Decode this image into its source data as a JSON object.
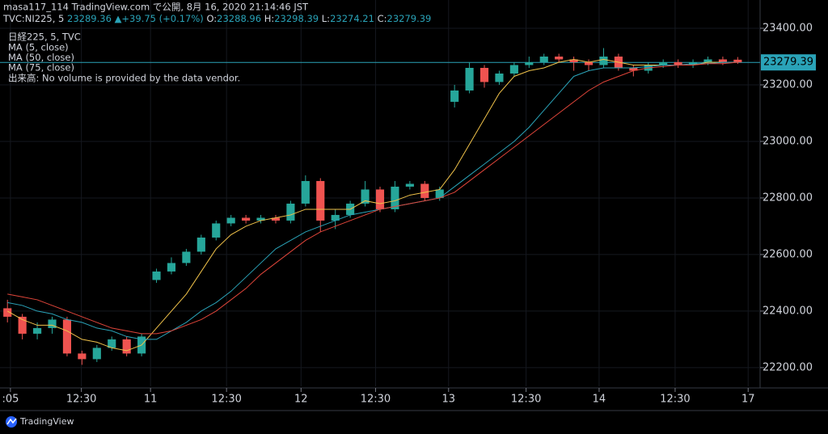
{
  "header": {
    "title": "masa117_114 TradingView.com で公開, 8月 16, 2020 21:14:46 JST",
    "symbol": "TVC:NI225, 5",
    "last": "23289.36",
    "arrow": "▲",
    "change": "+39.75 (+0.17%)",
    "ohlc": [
      {
        "label": "O:",
        "value": "23288.96"
      },
      {
        "label": "H:",
        "value": "23298.39"
      },
      {
        "label": "L:",
        "value": "23274.21"
      },
      {
        "label": "C:",
        "value": "23279.39"
      }
    ]
  },
  "footer": "TradingView",
  "chart_data": {
    "type": "candlestick",
    "legend_title": "日経225, 5, TVC",
    "volume_note": "出来高: No volume is provided by the data vendor.",
    "up_color": "#26a69a",
    "down_color": "#ef5350",
    "x": [
      0,
      1,
      2,
      3,
      4,
      5,
      6,
      7,
      8,
      9,
      10,
      11,
      12,
      13,
      14,
      15,
      16,
      17,
      18,
      19,
      20,
      21,
      22,
      23,
      24,
      25,
      26,
      27,
      28,
      29,
      30,
      31,
      32,
      33,
      34,
      35,
      36,
      37,
      38,
      39,
      40,
      41,
      42,
      43,
      44,
      45,
      46,
      47,
      48,
      49
    ],
    "open": [
      22410,
      22380,
      22320,
      22340,
      22370,
      22250,
      22230,
      22270,
      22300,
      22250,
      22510,
      22540,
      22570,
      22610,
      22660,
      22710,
      22730,
      22720,
      22730,
      22720,
      22780,
      22860,
      22720,
      22740,
      22780,
      22830,
      22760,
      22840,
      22850,
      22800,
      23140,
      23180,
      23260,
      23210,
      23240,
      23270,
      23280,
      23300,
      23290,
      23280,
      23270,
      23300,
      23260,
      23250,
      23270,
      23280,
      23270,
      23280,
      23290,
      23288.96
    ],
    "high": [
      22440,
      22390,
      22360,
      22380,
      22380,
      22260,
      22280,
      22310,
      22310,
      22320,
      22550,
      22590,
      22620,
      22670,
      22720,
      22740,
      22740,
      22740,
      22740,
      22790,
      22880,
      22870,
      22760,
      22790,
      22860,
      22840,
      22860,
      22860,
      22860,
      22840,
      23200,
      23280,
      23270,
      23250,
      23280,
      23300,
      23310,
      23310,
      23300,
      23290,
      23330,
      23310,
      23270,
      23280,
      23290,
      23290,
      23290,
      23300,
      23300,
      23298.39
    ],
    "low": [
      22360,
      22300,
      22300,
      22320,
      22240,
      22210,
      22220,
      22260,
      22240,
      22240,
      22500,
      22530,
      22560,
      22600,
      22650,
      22700,
      22710,
      22710,
      22710,
      22710,
      22770,
      22680,
      22690,
      22730,
      22770,
      22750,
      22750,
      22830,
      22790,
      22790,
      23120,
      23170,
      23190,
      23200,
      23230,
      23260,
      23270,
      23280,
      23250,
      23250,
      23260,
      23250,
      23230,
      23240,
      23260,
      23260,
      23260,
      23270,
      23270,
      23274.21
    ],
    "close": [
      22380,
      22320,
      22340,
      22370,
      22250,
      22230,
      22270,
      22300,
      22250,
      22310,
      22540,
      22570,
      22610,
      22660,
      22710,
      22730,
      22720,
      22730,
      22720,
      22780,
      22860,
      22720,
      22740,
      22780,
      22830,
      22760,
      22840,
      22850,
      22800,
      22830,
      23180,
      23260,
      23210,
      23240,
      23270,
      23280,
      23300,
      23290,
      23280,
      23270,
      23300,
      23260,
      23250,
      23270,
      23280,
      23270,
      23280,
      23290,
      23280,
      23279.39
    ],
    "series": [
      {
        "name": "MA (5, close)",
        "color": "#f0c24a",
        "values": [
          22400,
          22370,
          22350,
          22350,
          22330,
          22300,
          22290,
          22270,
          22260,
          22280,
          22340,
          22400,
          22460,
          22540,
          22620,
          22670,
          22700,
          22720,
          22730,
          22740,
          22760,
          22760,
          22760,
          22760,
          22790,
          22780,
          22790,
          22810,
          22820,
          22830,
          22900,
          22990,
          23080,
          23170,
          23230,
          23250,
          23260,
          23280,
          23290,
          23280,
          23290,
          23280,
          23270,
          23270,
          23270,
          23270,
          23270,
          23280,
          23280,
          23280
        ]
      },
      {
        "name": "MA (50, close)",
        "color": "#2aa3b8",
        "values": [
          22430,
          22420,
          22400,
          22390,
          22370,
          22360,
          22340,
          22330,
          22310,
          22300,
          22300,
          22330,
          22360,
          22400,
          22430,
          22470,
          22520,
          22570,
          22620,
          22650,
          22680,
          22700,
          22720,
          22740,
          22750,
          22760,
          22770,
          22780,
          22790,
          22800,
          22840,
          22880,
          22920,
          22960,
          23000,
          23050,
          23110,
          23170,
          23230,
          23250,
          23260,
          23260,
          23260,
          23265,
          23270,
          23270,
          23275,
          23275,
          23280,
          23280
        ]
      },
      {
        "name": "MA (75, close)",
        "color": "#e0453a",
        "values": [
          22460,
          22450,
          22440,
          22420,
          22400,
          22380,
          22360,
          22340,
          22330,
          22320,
          22320,
          22330,
          22350,
          22370,
          22400,
          22440,
          22480,
          22530,
          22570,
          22610,
          22650,
          22680,
          22700,
          22720,
          22740,
          22760,
          22770,
          22780,
          22790,
          22800,
          22820,
          22860,
          22900,
          22940,
          22980,
          23020,
          23060,
          23100,
          23140,
          23180,
          23210,
          23230,
          23250,
          23260,
          23265,
          23270,
          23270,
          23275,
          23275,
          23280
        ]
      }
    ],
    "xlim": [
      -0.5,
      50.5
    ],
    "xticks": [
      {
        "value": 0.2,
        "label": ":05"
      },
      {
        "value": 4.96,
        "label": "12:30"
      },
      {
        "value": 9.6,
        "label": "11"
      },
      {
        "value": 14.7,
        "label": "12:30"
      },
      {
        "value": 19.7,
        "label": "12"
      },
      {
        "value": 24.7,
        "label": "12:30"
      },
      {
        "value": 29.6,
        "label": "13"
      },
      {
        "value": 34.8,
        "label": "12:30"
      },
      {
        "value": 39.7,
        "label": "14"
      },
      {
        "value": 44.8,
        "label": "12:30"
      },
      {
        "value": 49.7,
        "label": "17"
      }
    ],
    "ylim": [
      22134,
      23420
    ],
    "yticks": [
      {
        "value": 22200,
        "label": "22200.00"
      },
      {
        "value": 22400,
        "label": "22400.00"
      },
      {
        "value": 22600,
        "label": "22600.00"
      },
      {
        "value": 22800,
        "label": "22800.00"
      },
      {
        "value": 23000,
        "label": "23000.00"
      },
      {
        "value": 23200,
        "label": "23200.00"
      },
      {
        "value": 23400,
        "label": "23400.00"
      }
    ],
    "grid": true
  }
}
